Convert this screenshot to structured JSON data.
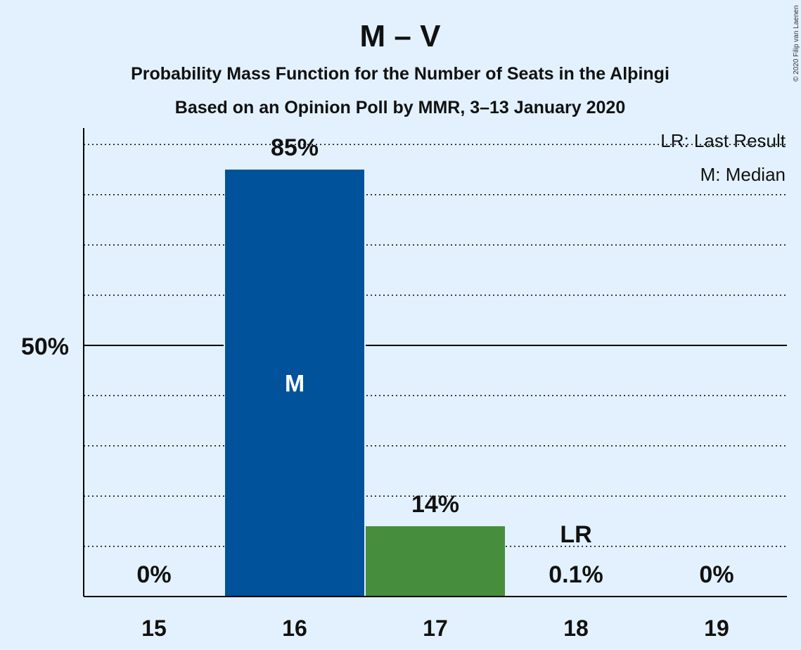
{
  "chart_data": {
    "type": "bar",
    "title": "M – V",
    "subtitle_1": "Probability Mass Function for the Number of Seats in the Alþingi",
    "subtitle_2": "Based on an Opinion Poll by MMR, 3–13 January 2020",
    "categories": [
      "15",
      "16",
      "17",
      "18",
      "19"
    ],
    "values": [
      0,
      85,
      14,
      0.1,
      0
    ],
    "value_labels": [
      "0%",
      "85%",
      "14%",
      "0.1%",
      "0%"
    ],
    "bar_colors": [
      "#00529b",
      "#00529b",
      "#468e3d",
      "#468e3d",
      "#468e3d"
    ],
    "ylim": [
      0,
      93
    ],
    "ytick_major": 50,
    "ytick_major_label": "50%",
    "grid_step": 10,
    "median_category": "16",
    "median_mark": "M",
    "last_result_category": "18",
    "last_result_mark": "LR",
    "legend": [
      "LR: Last Result",
      "M: Median"
    ],
    "legend_position": "top-right"
  },
  "copyright": "© 2020 Filip van Laenen",
  "colors": {
    "background": "#e3f1fe",
    "median_bar": "#00529b",
    "other_bar": "#468e3d",
    "axis": "#000000"
  }
}
